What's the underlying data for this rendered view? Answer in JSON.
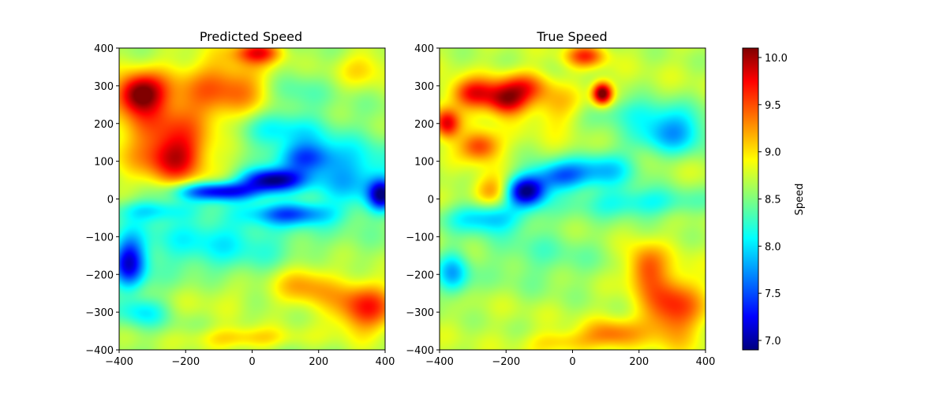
{
  "chart_data": [
    {
      "type": "heatmap",
      "title": "Predicted Speed",
      "xlim": [
        -400,
        400
      ],
      "ylim": [
        -400,
        400
      ],
      "xticks": [
        -400,
        -200,
        0,
        200,
        400
      ],
      "yticks": [
        -400,
        -300,
        -200,
        -100,
        0,
        100,
        200,
        300,
        400
      ],
      "colormap": "jet",
      "vrange": [
        6.9,
        10.1
      ],
      "field": {
        "base": 8.6,
        "features": [
          {
            "x": -340,
            "y": 280,
            "sx": 70,
            "sy": 50,
            "a": 1.3
          },
          {
            "x": -260,
            "y": 180,
            "sx": 160,
            "sy": 150,
            "a": 0.8
          },
          {
            "x": -230,
            "y": 110,
            "sx": 80,
            "sy": 60,
            "a": 0.7
          },
          {
            "x": -60,
            "y": 300,
            "sx": 130,
            "sy": 90,
            "a": 0.7
          },
          {
            "x": 20,
            "y": 390,
            "sx": 70,
            "sy": 30,
            "a": 0.9
          },
          {
            "x": 340,
            "y": 350,
            "sx": 90,
            "sy": 50,
            "a": 0.4
          },
          {
            "x": 120,
            "y": 280,
            "sx": 90,
            "sy": 60,
            "a": -0.3
          },
          {
            "x": -100,
            "y": 20,
            "sx": 130,
            "sy": 25,
            "a": -1.4
          },
          {
            "x": 60,
            "y": 50,
            "sx": 90,
            "sy": 30,
            "a": -1.6
          },
          {
            "x": 160,
            "y": 110,
            "sx": 90,
            "sy": 40,
            "a": -0.9
          },
          {
            "x": 300,
            "y": 60,
            "sx": 150,
            "sy": 90,
            "a": -0.7
          },
          {
            "x": -300,
            "y": -30,
            "sx": 120,
            "sy": 30,
            "a": -0.6
          },
          {
            "x": -120,
            "y": -110,
            "sx": 260,
            "sy": 90,
            "a": -0.5
          },
          {
            "x": 120,
            "y": -40,
            "sx": 120,
            "sy": 30,
            "a": -0.9
          },
          {
            "x": 390,
            "y": 10,
            "sx": 40,
            "sy": 40,
            "a": -1.3
          },
          {
            "x": -370,
            "y": -170,
            "sx": 50,
            "sy": 70,
            "a": -1.3
          },
          {
            "x": -330,
            "y": -300,
            "sx": 80,
            "sy": 40,
            "a": -0.5
          },
          {
            "x": 340,
            "y": -290,
            "sx": 100,
            "sy": 70,
            "a": 1.0
          },
          {
            "x": 160,
            "y": -230,
            "sx": 90,
            "sy": 60,
            "a": 0.6
          },
          {
            "x": -30,
            "y": -370,
            "sx": 160,
            "sy": 30,
            "a": 0.5
          },
          {
            "x": -100,
            "y": -260,
            "sx": 140,
            "sy": 50,
            "a": 0.2
          },
          {
            "x": 80,
            "y": 180,
            "sx": 160,
            "sy": 50,
            "a": -0.5
          }
        ]
      }
    },
    {
      "type": "heatmap",
      "title": "True Speed",
      "xlim": [
        -400,
        400
      ],
      "ylim": [
        -400,
        400
      ],
      "xticks": [
        -400,
        -200,
        0,
        200,
        400
      ],
      "yticks": [
        -400,
        -300,
        -200,
        -100,
        0,
        100,
        200,
        300,
        400
      ],
      "colormap": "jet",
      "vrange": [
        6.9,
        10.1
      ],
      "field": {
        "base": 8.7,
        "features": [
          {
            "x": -300,
            "y": 280,
            "sx": 70,
            "sy": 40,
            "a": 1.0
          },
          {
            "x": -200,
            "y": 260,
            "sx": 60,
            "sy": 40,
            "a": 1.1
          },
          {
            "x": 90,
            "y": 280,
            "sx": 30,
            "sy": 30,
            "a": 1.6
          },
          {
            "x": -380,
            "y": 200,
            "sx": 40,
            "sy": 40,
            "a": 1.1
          },
          {
            "x": -280,
            "y": 140,
            "sx": 60,
            "sy": 40,
            "a": 0.9
          },
          {
            "x": -150,
            "y": 300,
            "sx": 80,
            "sy": 40,
            "a": 0.7
          },
          {
            "x": 40,
            "y": 380,
            "sx": 60,
            "sy": 30,
            "a": 0.8
          },
          {
            "x": -50,
            "y": 240,
            "sx": 90,
            "sy": 60,
            "a": 0.4
          },
          {
            "x": 150,
            "y": 230,
            "sx": 140,
            "sy": 40,
            "a": -0.4
          },
          {
            "x": 300,
            "y": 180,
            "sx": 110,
            "sy": 60,
            "a": -0.9
          },
          {
            "x": -140,
            "y": 20,
            "sx": 60,
            "sy": 40,
            "a": -1.7
          },
          {
            "x": -40,
            "y": 60,
            "sx": 90,
            "sy": 40,
            "a": -1.0
          },
          {
            "x": 100,
            "y": 80,
            "sx": 100,
            "sy": 50,
            "a": -0.7
          },
          {
            "x": -260,
            "y": -50,
            "sx": 120,
            "sy": 40,
            "a": -0.8
          },
          {
            "x": 200,
            "y": -10,
            "sx": 200,
            "sy": 40,
            "a": -0.6
          },
          {
            "x": -360,
            "y": -200,
            "sx": 50,
            "sy": 60,
            "a": -0.8
          },
          {
            "x": -100,
            "y": -150,
            "sx": 200,
            "sy": 90,
            "a": -0.3
          },
          {
            "x": 300,
            "y": -290,
            "sx": 90,
            "sy": 90,
            "a": 0.9
          },
          {
            "x": 220,
            "y": -180,
            "sx": 60,
            "sy": 60,
            "a": 0.7
          },
          {
            "x": 120,
            "y": -360,
            "sx": 80,
            "sy": 40,
            "a": 0.6
          },
          {
            "x": -240,
            "y": 20,
            "sx": 60,
            "sy": 40,
            "a": 0.6
          },
          {
            "x": -30,
            "y": -380,
            "sx": 100,
            "sy": 30,
            "a": 0.4
          }
        ]
      }
    }
  ],
  "colorbar": {
    "label": "Speed",
    "ticks": [
      "7.0",
      "7.5",
      "8.0",
      "8.5",
      "9.0",
      "9.5",
      "10.0"
    ],
    "range": [
      6.9,
      10.1
    ]
  },
  "colors": {
    "jet_stops": [
      "#00007f",
      "#0000ff",
      "#00ffff",
      "#7fff7f",
      "#ffff00",
      "#ff0000",
      "#7f0000"
    ]
  }
}
